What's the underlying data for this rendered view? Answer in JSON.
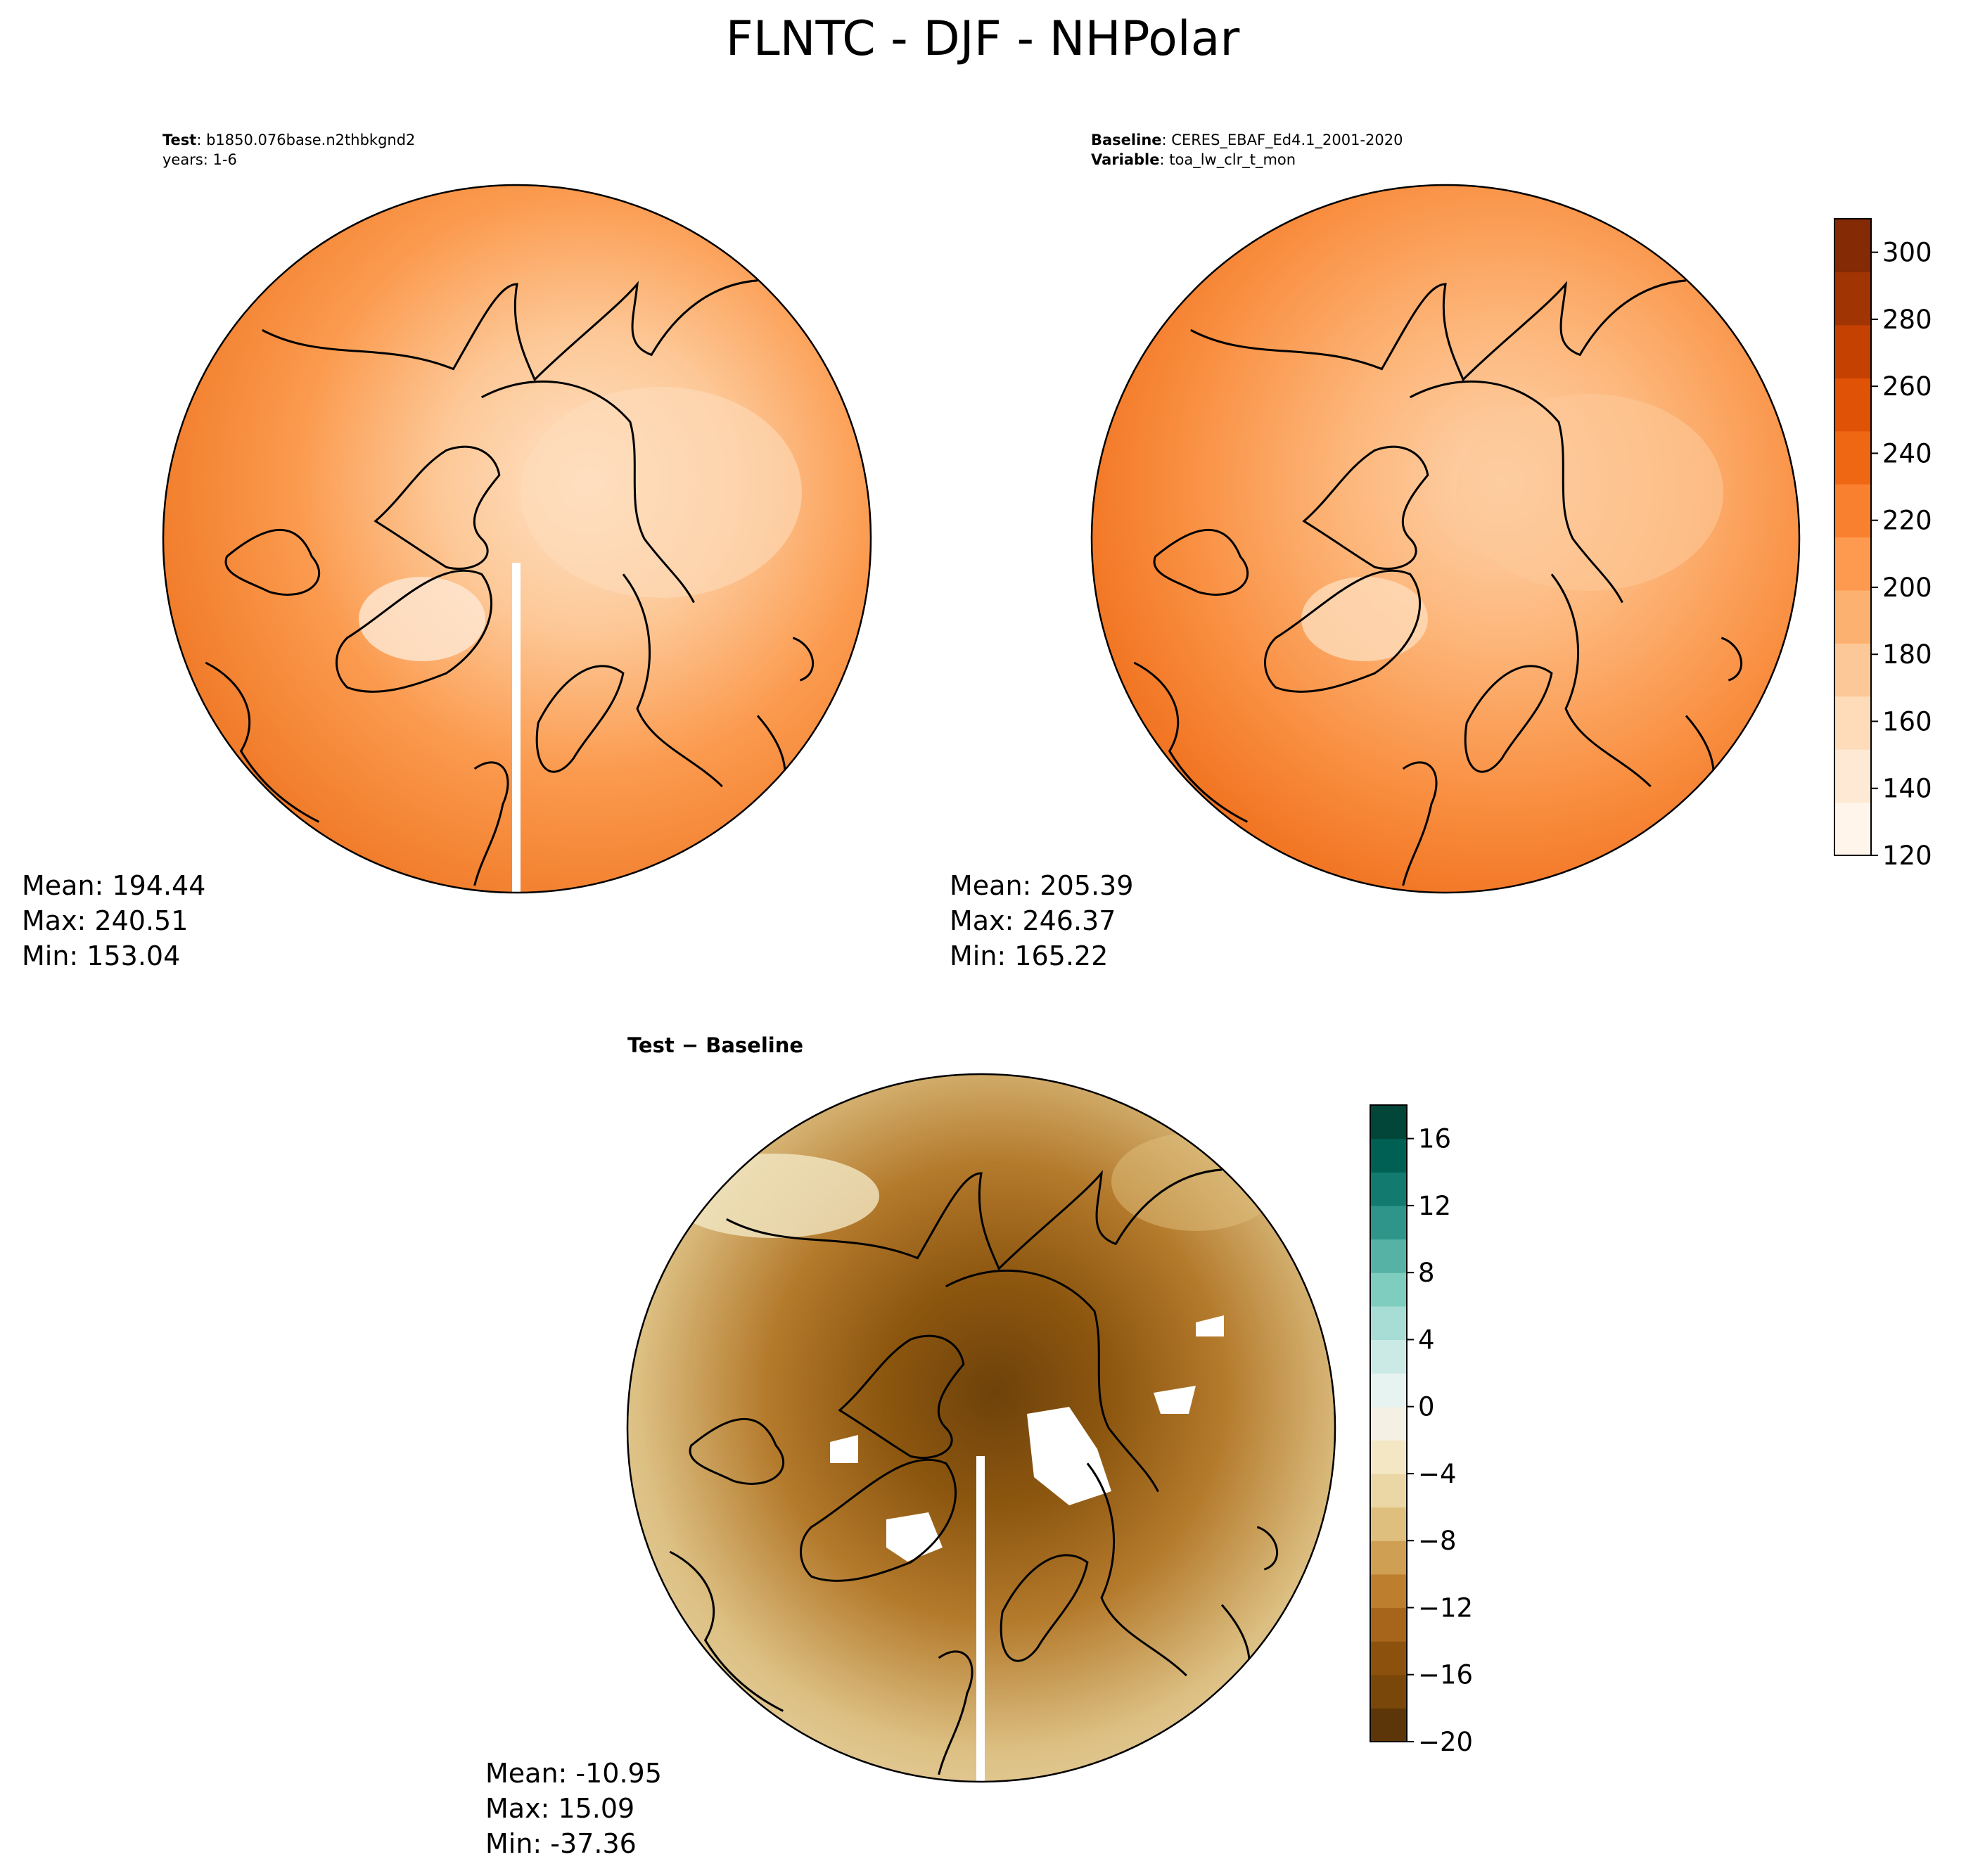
{
  "figure": {
    "title": "FLNTC - DJF - NHPolar"
  },
  "chart_data": [
    {
      "type": "heatmap",
      "projection": "north-polar-stereographic",
      "info": [
        {
          "label": "Test",
          "value": "b1850.076base.n2thbkgnd2"
        },
        {
          "label": "",
          "value": "years: 1-6"
        }
      ],
      "stats": {
        "mean": "Mean: 194.44",
        "max": "Max: 240.51",
        "min": "Min: 153.04"
      },
      "colormap": "Oranges"
    },
    {
      "type": "heatmap",
      "projection": "north-polar-stereographic",
      "info": [
        {
          "label": "Baseline",
          "value": "CERES_EBAF_Ed4.1_2001-2020"
        },
        {
          "label": "Variable",
          "value": "toa_lw_clr_t_mon"
        }
      ],
      "stats": {
        "mean": "Mean: 205.39",
        "max": "Max: 246.37",
        "min": "Min: 165.22"
      },
      "colormap": "Oranges",
      "colorbar": {
        "range": [
          120,
          310
        ],
        "ticks": [
          "120",
          "140",
          "160",
          "180",
          "200",
          "220",
          "240",
          "260",
          "280",
          "300"
        ],
        "colors": [
          "#fff5eb",
          "#fee9d5",
          "#fedcba",
          "#fdc897",
          "#fdb170",
          "#fd9a4f",
          "#f9802f",
          "#ef6712",
          "#e05206",
          "#c54102",
          "#a13403",
          "#842a04"
        ]
      }
    },
    {
      "type": "heatmap",
      "projection": "north-polar-stereographic",
      "title": "Test − Baseline",
      "stats": {
        "mean": "Mean: -10.95",
        "max": "Max: 15.09",
        "min": "Min: -37.36"
      },
      "colormap": "BrBG",
      "colorbar": {
        "range": [
          -20,
          18
        ],
        "ticks": [
          "−20",
          "−16",
          "−12",
          "−8",
          "−4",
          "0",
          "4",
          "8",
          "12",
          "16"
        ],
        "colors": [
          "#5c3608",
          "#7a470a",
          "#8c520d",
          "#a7651c",
          "#bd7e2e",
          "#cf9f54",
          "#dfbf7d",
          "#ebd7a5",
          "#f3e7c4",
          "#f5f0e4",
          "#e7f3f1",
          "#cbeae6",
          "#a7ddd4",
          "#7fcdbf",
          "#56b2a5",
          "#2f958a",
          "#137a70",
          "#016054",
          "#014638"
        ]
      }
    }
  ]
}
